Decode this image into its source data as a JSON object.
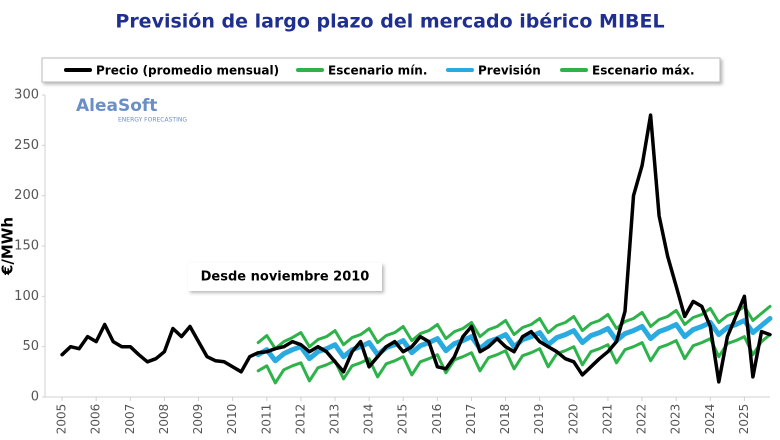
{
  "chart_data": {
    "type": "line",
    "title": "Previsión de largo plazo del mercado ibérico MIBEL",
    "y_label": "€/MWh",
    "annotation": "Desde noviembre 2010",
    "watermark": "AleaSoft",
    "watermark_subtitle": "ENERGY FORECASTING",
    "x": [
      2005,
      2005.25,
      2005.5,
      2005.75,
      2006,
      2006.25,
      2006.5,
      2006.75,
      2007,
      2007.25,
      2007.5,
      2007.75,
      2008,
      2008.25,
      2008.5,
      2008.75,
      2009,
      2009.25,
      2009.5,
      2009.75,
      2010,
      2010.25,
      2010.5,
      2010.75,
      2011,
      2011.25,
      2011.5,
      2011.75,
      2012,
      2012.25,
      2012.5,
      2012.75,
      2013,
      2013.25,
      2013.5,
      2013.75,
      2014,
      2014.25,
      2014.5,
      2014.75,
      2015,
      2015.25,
      2015.5,
      2015.75,
      2016,
      2016.25,
      2016.5,
      2016.75,
      2017,
      2017.25,
      2017.5,
      2017.75,
      2018,
      2018.25,
      2018.5,
      2018.75,
      2019,
      2019.25,
      2019.5,
      2019.75,
      2020,
      2020.25,
      2020.5,
      2020.75,
      2021,
      2021.25,
      2021.5,
      2021.75,
      2022,
      2022.25,
      2022.5,
      2022.75,
      2023,
      2023.25,
      2023.5,
      2023.75,
      2024,
      2024.25,
      2024.5,
      2024.75,
      2025,
      2025.25,
      2025.5,
      2025.75
    ],
    "series": [
      {
        "name": "Precio (promedio mensual)",
        "color": "#000000",
        "width": 3.5,
        "values": [
          42,
          50,
          48,
          60,
          55,
          72,
          55,
          50,
          50,
          42,
          35,
          38,
          45,
          68,
          60,
          70,
          55,
          40,
          36,
          35,
          30,
          25,
          40,
          44,
          45,
          48,
          50,
          55,
          52,
          45,
          50,
          45,
          35,
          25,
          45,
          55,
          30,
          40,
          50,
          55,
          45,
          50,
          60,
          55,
          30,
          28,
          40,
          60,
          70,
          45,
          50,
          58,
          50,
          45,
          60,
          65,
          55,
          50,
          45,
          38,
          35,
          22,
          30,
          38,
          45,
          55,
          85,
          200,
          230,
          280,
          180,
          140,
          110,
          80,
          95,
          90,
          70,
          15,
          60,
          80,
          100,
          20,
          65,
          62
        ]
      },
      {
        "name": "Escenario mín.",
        "color": "#2db34a",
        "width": 3,
        "values": [
          null,
          null,
          null,
          null,
          null,
          null,
          null,
          null,
          null,
          null,
          null,
          null,
          null,
          null,
          null,
          null,
          null,
          null,
          null,
          null,
          null,
          null,
          null,
          26,
          31,
          14,
          27,
          31,
          34,
          16,
          29,
          32,
          36,
          18,
          31,
          34,
          38,
          20,
          33,
          36,
          40,
          22,
          35,
          38,
          42,
          24,
          37,
          40,
          44,
          26,
          39,
          42,
          46,
          28,
          41,
          44,
          48,
          30,
          43,
          46,
          50,
          32,
          45,
          48,
          52,
          34,
          47,
          50,
          54,
          36,
          49,
          52,
          56,
          38,
          51,
          54,
          58,
          40,
          53,
          56,
          60,
          42,
          55,
          62
        ]
      },
      {
        "name": "Previsión",
        "color": "#29abe2",
        "width": 5,
        "values": [
          null,
          null,
          null,
          null,
          null,
          null,
          null,
          null,
          null,
          null,
          null,
          null,
          null,
          null,
          null,
          null,
          null,
          null,
          null,
          null,
          null,
          null,
          null,
          42,
          47,
          36,
          43,
          47,
          50,
          38,
          45,
          48,
          52,
          40,
          47,
          50,
          54,
          42,
          49,
          52,
          56,
          44,
          51,
          54,
          58,
          46,
          53,
          56,
          60,
          48,
          55,
          58,
          62,
          50,
          57,
          60,
          64,
          52,
          59,
          62,
          66,
          54,
          61,
          64,
          68,
          56,
          63,
          66,
          70,
          58,
          65,
          68,
          72,
          60,
          67,
          70,
          74,
          62,
          69,
          72,
          76,
          64,
          71,
          78
        ]
      },
      {
        "name": "Escenario máx.",
        "color": "#2db34a",
        "width": 3,
        "values": [
          null,
          null,
          null,
          null,
          null,
          null,
          null,
          null,
          null,
          null,
          null,
          null,
          null,
          null,
          null,
          null,
          null,
          null,
          null,
          null,
          null,
          null,
          null,
          54,
          61,
          48,
          55,
          59,
          64,
          50,
          57,
          60,
          66,
          52,
          59,
          62,
          68,
          54,
          61,
          64,
          70,
          56,
          63,
          66,
          72,
          58,
          65,
          68,
          74,
          60,
          67,
          70,
          76,
          62,
          69,
          72,
          78,
          64,
          71,
          74,
          80,
          66,
          73,
          76,
          82,
          68,
          75,
          78,
          84,
          70,
          77,
          80,
          86,
          72,
          79,
          82,
          88,
          74,
          81,
          84,
          90,
          76,
          83,
          90
        ]
      }
    ],
    "xlim": [
      2004.5,
      2025.75
    ],
    "xticks": [
      2005,
      2006,
      2007,
      2008,
      2009,
      2010,
      2011,
      2012,
      2013,
      2014,
      2015,
      2016,
      2017,
      2018,
      2019,
      2020,
      2021,
      2022,
      2023,
      2024,
      2025
    ],
    "ylim": [
      0,
      300
    ],
    "yticks": [
      0,
      50,
      100,
      150,
      200,
      250,
      300
    ],
    "grid": false
  }
}
